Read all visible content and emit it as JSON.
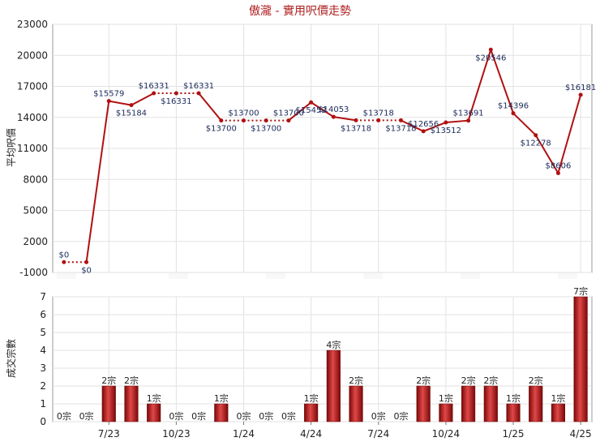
{
  "chart_data": [
    {
      "type": "line",
      "title": "傲瀧 - 實用呎價走勢",
      "ylabel": "平均呎價",
      "ylim": [
        -1000,
        23000
      ],
      "yticks": [
        -1000,
        2000,
        5000,
        8000,
        11000,
        14000,
        17000,
        20000,
        23000
      ],
      "grid": true,
      "color": "#b01010",
      "values": [
        0,
        0,
        15579,
        15184,
        16331,
        16331,
        16331,
        13700,
        13700,
        13700,
        13700,
        15452,
        14053,
        13718,
        13718,
        13718,
        12656,
        13512,
        13691,
        20546,
        14396,
        12278,
        8606,
        16181
      ],
      "labels": [
        "$0",
        "$0",
        "$15579",
        "$15184",
        "$16331",
        "$16331",
        "$16331",
        "$13700",
        "$13700",
        "$13700",
        "$13700",
        "$15452",
        "$14053",
        "$13718",
        "$13718",
        "$13718",
        "$12656",
        "$13512",
        "$13691",
        "$20546",
        "$14396",
        "$12278",
        "$8606",
        "$16181"
      ],
      "dotted_segments": [
        0,
        4,
        5,
        7,
        8,
        9,
        13,
        14
      ]
    },
    {
      "type": "bar",
      "ylabel": "成交宗數",
      "ylim": [
        0,
        7
      ],
      "yticks": [
        0,
        1,
        2,
        3,
        4,
        5,
        6,
        7
      ],
      "grid": true,
      "color": "#b01010",
      "values": [
        0,
        0,
        2,
        2,
        1,
        0,
        0,
        1,
        0,
        0,
        0,
        1,
        4,
        2,
        0,
        0,
        2,
        1,
        2,
        2,
        1,
        2,
        1,
        7
      ],
      "labels": [
        "0宗",
        "0宗",
        "2宗",
        "2宗",
        "1宗",
        "0宗",
        "0宗",
        "1宗",
        "0宗",
        "0宗",
        "0宗",
        "1宗",
        "4宗",
        "2宗",
        "0宗",
        "0宗",
        "2宗",
        "1宗",
        "2宗",
        "2宗",
        "1宗",
        "2宗",
        "1宗",
        "7宗"
      ],
      "x_ticks": [
        {
          "index": 2,
          "label": "7/23"
        },
        {
          "index": 5,
          "label": "10/23"
        },
        {
          "index": 8,
          "label": "1/24"
        },
        {
          "index": 11,
          "label": "4/24"
        },
        {
          "index": 14,
          "label": "7/24"
        },
        {
          "index": 17,
          "label": "10/24"
        },
        {
          "index": 20,
          "label": "1/25"
        },
        {
          "index": 23,
          "label": "4/25"
        }
      ]
    }
  ]
}
